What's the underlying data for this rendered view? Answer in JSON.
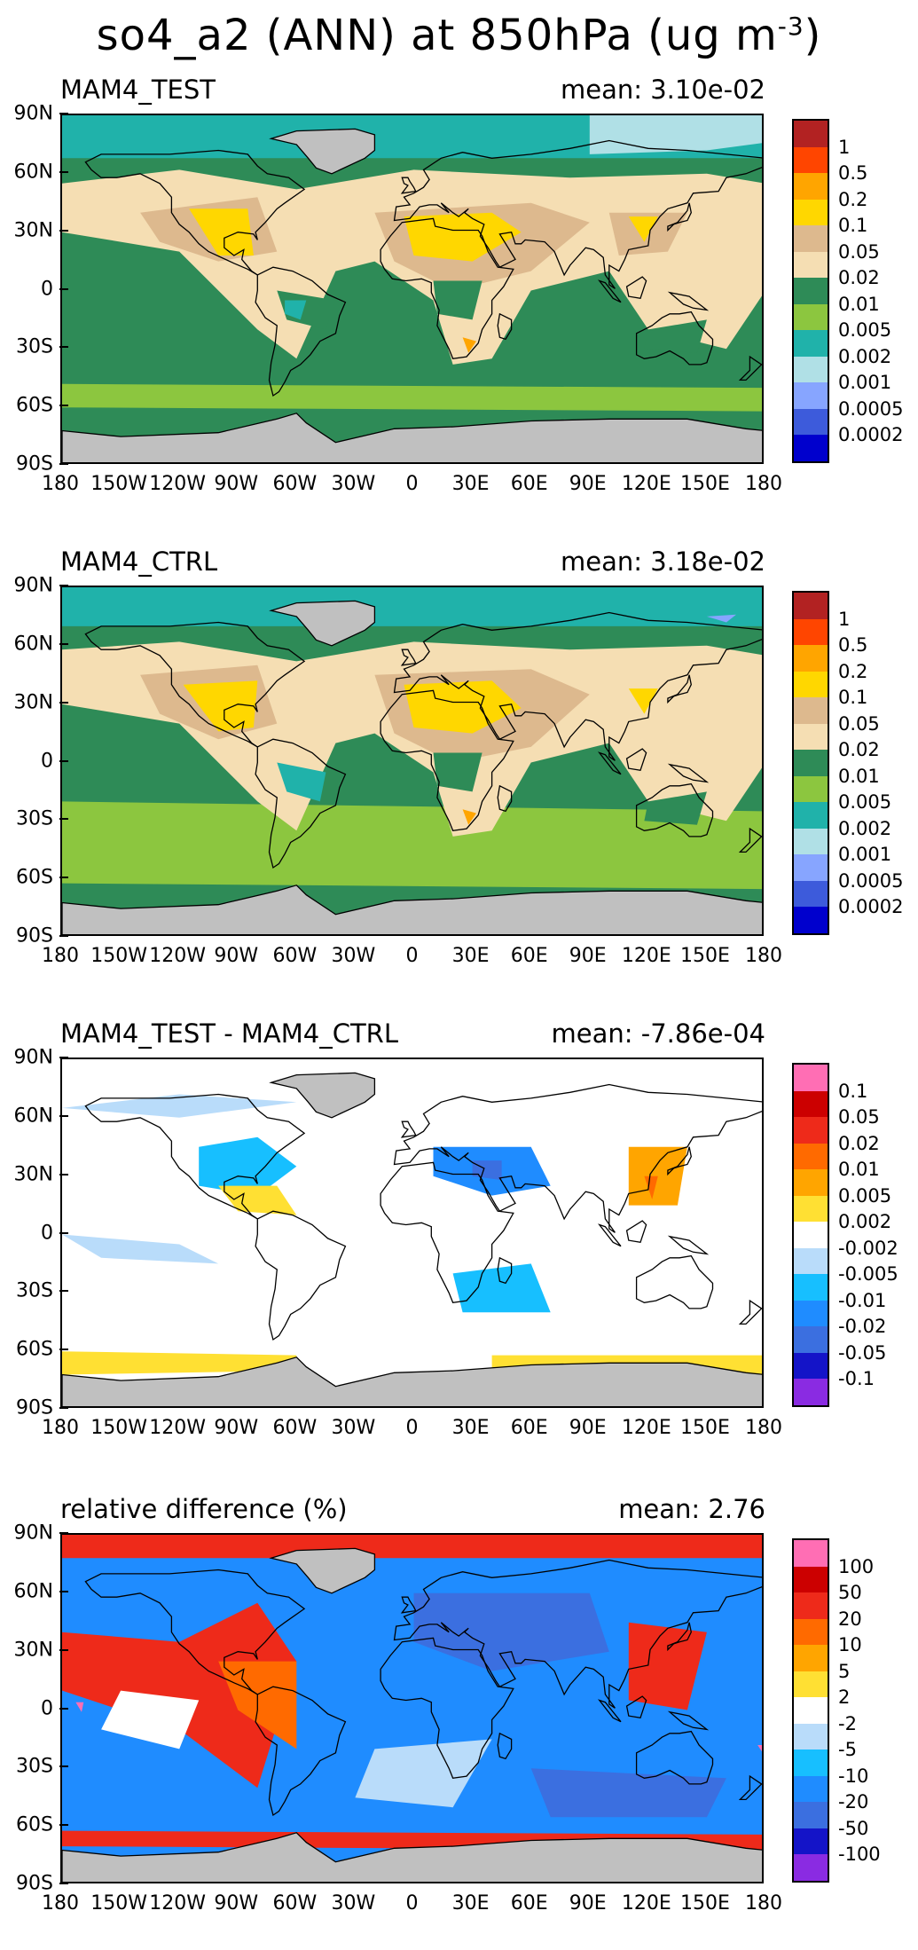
{
  "title": {
    "text": "so4_a2 (ANN) at 850hPa (ug m",
    "exp": "-3",
    "close": ")"
  },
  "lat_ticks": [
    "90N",
    "60N",
    "30N",
    "0",
    "30S",
    "60S",
    "90S"
  ],
  "lon_ticks": [
    "180",
    "150W",
    "120W",
    "90W",
    "60W",
    "30W",
    "0",
    "30E",
    "60E",
    "90E",
    "120E",
    "150E",
    "180"
  ],
  "panels": [
    {
      "name": "MAM4_TEST",
      "mean": "mean: 3.10e-02",
      "levels": [
        "1",
        "0.5",
        "0.2",
        "0.1",
        "0.05",
        "0.02",
        "0.01",
        "0.005",
        "0.002",
        "0.001",
        "0.0005",
        "0.0002"
      ],
      "colors": [
        "#b22222",
        "#ff4500",
        "#ffa500",
        "#ffd700",
        "#ddb98e",
        "#f5deb3",
        "#2e8b57",
        "#8cc63f",
        "#20b2aa",
        "#b0e0e6",
        "#87a5ff",
        "#3d5bdb",
        "#0000cd"
      ]
    },
    {
      "name": "MAM4_CTRL",
      "mean": "mean: 3.18e-02",
      "levels": [
        "1",
        "0.5",
        "0.2",
        "0.1",
        "0.05",
        "0.02",
        "0.01",
        "0.005",
        "0.002",
        "0.001",
        "0.0005",
        "0.0002"
      ],
      "colors": [
        "#b22222",
        "#ff4500",
        "#ffa500",
        "#ffd700",
        "#ddb98e",
        "#f5deb3",
        "#2e8b57",
        "#8cc63f",
        "#20b2aa",
        "#b0e0e6",
        "#87a5ff",
        "#3d5bdb",
        "#0000cd"
      ]
    },
    {
      "name": "MAM4_TEST - MAM4_CTRL",
      "mean": "mean: -7.86e-04",
      "levels": [
        "0.1",
        "0.05",
        "0.02",
        "0.01",
        "0.005",
        "0.002",
        "-0.002",
        "-0.005",
        "-0.01",
        "-0.02",
        "-0.05",
        "-0.1"
      ],
      "colors": [
        "#ff6eb4",
        "#cc0000",
        "#ee2a1a",
        "#ff6a00",
        "#ffa500",
        "#ffe033",
        "#ffffff",
        "#b9dcfa",
        "#17bfff",
        "#1f8cff",
        "#3b6fe0",
        "#1414c8",
        "#8a2be2"
      ]
    },
    {
      "name": "relative difference (%)",
      "mean": "mean:  2.76",
      "levels": [
        "100",
        "50",
        "20",
        "10",
        "5",
        "2",
        "-2",
        "-5",
        "-10",
        "-20",
        "-50",
        "-100"
      ],
      "colors": [
        "#ff6eb4",
        "#cc0000",
        "#ee2a1a",
        "#ff6a00",
        "#ffa500",
        "#ffe033",
        "#ffffff",
        "#b9dcfa",
        "#17bfff",
        "#1f8cff",
        "#3b6fe0",
        "#1414c8",
        "#8a2be2"
      ]
    }
  ]
}
